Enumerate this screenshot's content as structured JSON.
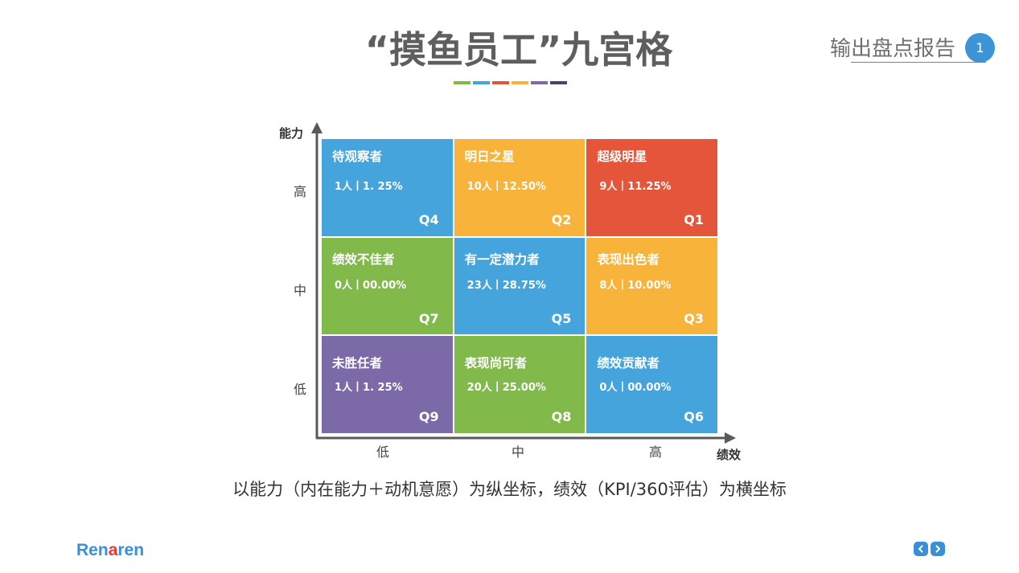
{
  "slide": {
    "title": "“摸鱼员工”九宫格",
    "title_accent_colors": [
      "#81b94b",
      "#46a4dc",
      "#e4553a",
      "#f8b33b",
      "#7c69a8",
      "#3e4a5e"
    ],
    "section_label": "输出盘点报告",
    "page_number": "1",
    "badge_color": "#3d95d8",
    "caption": "以能力（内在能力＋动机意愿）为纵坐标，绩效（KPI/360评估）为横坐标"
  },
  "nine_box": {
    "y_axis": {
      "label": "能力",
      "ticks": [
        "高",
        "中",
        "低"
      ]
    },
    "x_axis": {
      "label": "绩效",
      "ticks": [
        "低",
        "中",
        "高"
      ]
    },
    "axis_color": "#595959",
    "rows": [
      [
        {
          "title": "待观察者",
          "stat": "1人丨1. 25%",
          "quadrant": "Q4",
          "color": "#46a4dc"
        },
        {
          "title": "明日之星",
          "stat": "10人丨12.50%",
          "quadrant": "Q2",
          "color": "#f8b33b"
        },
        {
          "title": "超级明星",
          "stat": "9人丨11.25%",
          "quadrant": "Q1",
          "color": "#e4553a"
        }
      ],
      [
        {
          "title": "绩效不佳者",
          "stat": "0人丨00.00%",
          "quadrant": "Q7",
          "color": "#81b94b"
        },
        {
          "title": "有一定潜力者",
          "stat": "23人丨28.75%",
          "quadrant": "Q5",
          "color": "#46a4dc"
        },
        {
          "title": "表现出色者",
          "stat": "8人丨10.00%",
          "quadrant": "Q3",
          "color": "#f8b33b"
        }
      ],
      [
        {
          "title": "未胜任者",
          "stat": "1人丨1. 25%",
          "quadrant": "Q9",
          "color": "#7c69a8"
        },
        {
          "title": "表现尚可者",
          "stat": "20人丨25.00%",
          "quadrant": "Q8",
          "color": "#81b94b"
        },
        {
          "title": "绩效贡献者",
          "stat": "0人丨00.00%",
          "quadrant": "Q6",
          "color": "#46a4dc"
        }
      ]
    ]
  },
  "footer": {
    "logo": {
      "part1": "Ren",
      "highlight": "a",
      "part2": "ren",
      "color": "#3b8fd6",
      "highlight_color": "#e53935"
    },
    "nav": {
      "prev_icon": "chevron-left-icon",
      "next_icon": "chevron-right-icon",
      "color": "#3b8fd6"
    }
  }
}
